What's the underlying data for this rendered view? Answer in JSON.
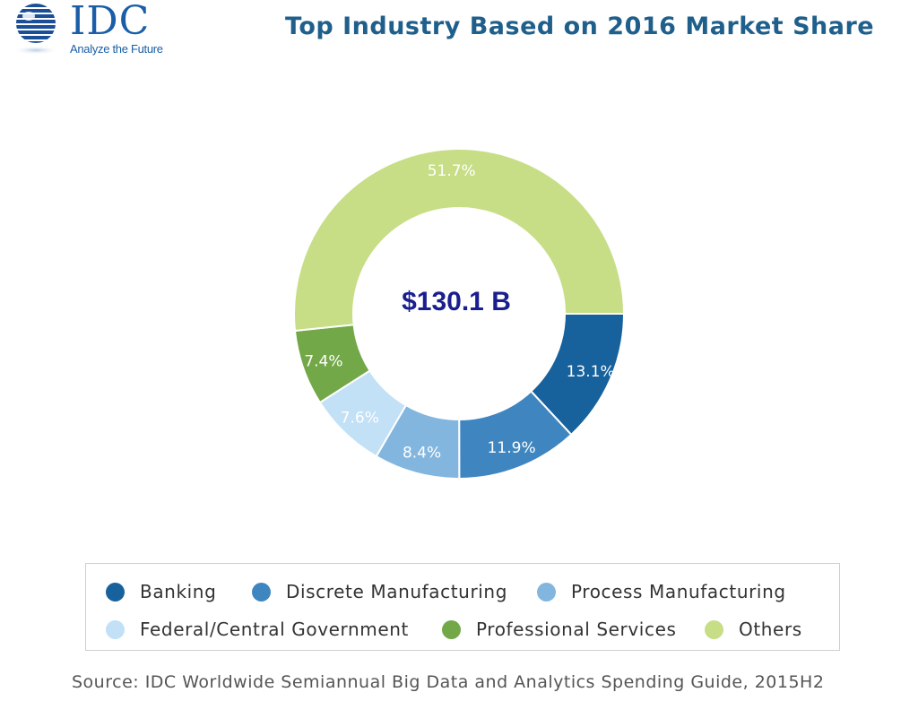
{
  "logo": {
    "name": "IDC",
    "tagline": "Analyze the Future"
  },
  "chart_data": {
    "type": "pie",
    "title": "Top Industry Based on 2016 Market Share",
    "center_label": "$130.1 B",
    "slices": [
      {
        "name": "Banking",
        "value": 13.1,
        "label": "13.1%",
        "color": "#17619c"
      },
      {
        "name": "Discrete Manufacturing",
        "value": 11.9,
        "label": "11.9%",
        "color": "#3f86c0"
      },
      {
        "name": "Process Manufacturing",
        "value": 8.4,
        "label": "8.4%",
        "color": "#82b6de"
      },
      {
        "name": "Federal/Central Government",
        "value": 7.6,
        "label": "7.6%",
        "color": "#c2e0f6"
      },
      {
        "name": "Professional Services",
        "value": 7.4,
        "label": "7.4%",
        "color": "#72a847"
      },
      {
        "name": "Others",
        "value": 51.7,
        "label": "51.7%",
        "color": "#c7de86"
      }
    ],
    "legend_position": "bottom",
    "source": "Source: IDC Worldwide Semiannual Big Data and Analytics Spending Guide, 2015H2"
  }
}
